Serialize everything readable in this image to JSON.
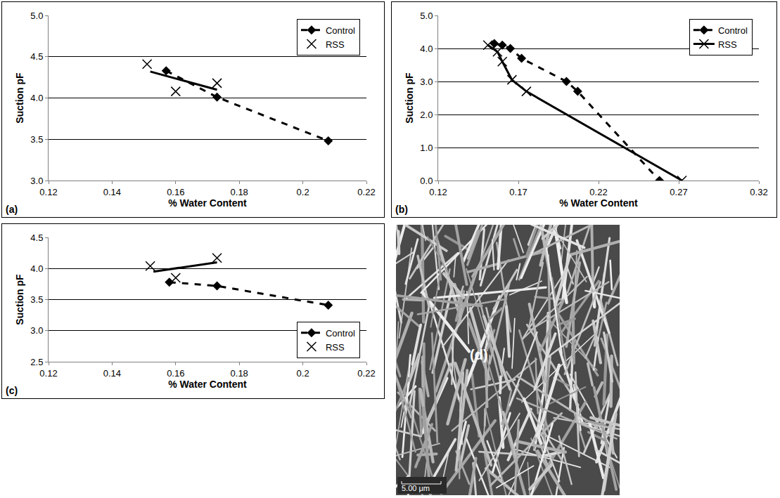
{
  "chart_data": [
    {
      "type": "scatter",
      "label": "(a)",
      "x_label": "% Water Content",
      "y_label": "Suction pF",
      "xlim": [
        0.12,
        0.22
      ],
      "xticks": [
        0.12,
        0.14,
        0.16,
        0.18,
        0.2,
        0.22
      ],
      "ylim": [
        3,
        5
      ],
      "yticks": [
        {
          "value": 3,
          "label": "3.0"
        },
        3.5,
        {
          "value": 4,
          "label": "4.0"
        },
        4.5,
        {
          "value": 5,
          "label": "5.0"
        }
      ],
      "grid": true,
      "legend": "upper right",
      "series": [
        {
          "name": "Control",
          "color": "#000000",
          "marker": "diamond",
          "line_style": "dashed",
          "x": [
            0.157,
            0.173,
            0.208
          ],
          "values": [
            4.33,
            4.01,
            3.48
          ]
        },
        {
          "name": "RSS",
          "color": "#000000",
          "marker": "x",
          "line_style": "none",
          "x": [
            0.151,
            0.16,
            0.173
          ],
          "values": [
            4.41,
            4.08,
            4.18
          ],
          "trend": {
            "x": [
              0.152,
              0.173
            ],
            "values": [
              4.32,
              4.1
            ],
            "line_style": "solid"
          }
        }
      ]
    },
    {
      "type": "scatter",
      "label": "(b)",
      "x_label": "% Water Content",
      "y_label": "Suction pF",
      "xlim": [
        0.12,
        0.32
      ],
      "xticks": [
        0.12,
        0.17,
        0.22,
        0.27,
        0.32
      ],
      "ylim": [
        0,
        5
      ],
      "yticks": [
        {
          "value": 0,
          "label": "0.0"
        },
        {
          "value": 1,
          "label": "1.0"
        },
        {
          "value": 2,
          "label": "2.0"
        },
        {
          "value": 3,
          "label": "3.0"
        },
        {
          "value": 4,
          "label": "4.0"
        },
        {
          "value": 5,
          "label": "5.0"
        }
      ],
      "grid": true,
      "legend": "upper right",
      "series": [
        {
          "name": "Control",
          "color": "#000000",
          "marker": "diamond",
          "line_style": "dashed",
          "x": [
            0.155,
            0.16,
            0.165,
            0.172,
            0.2,
            0.207,
            0.258
          ],
          "values": [
            4.15,
            4.1,
            4.0,
            3.7,
            3.0,
            2.7,
            0.0
          ]
        },
        {
          "name": "RSS",
          "color": "#000000",
          "marker": "x",
          "line_style": "solid",
          "x": [
            0.151,
            0.157,
            0.16,
            0.166,
            0.175,
            0.272
          ],
          "values": [
            4.1,
            3.9,
            3.6,
            3.05,
            2.7,
            0.0
          ]
        }
      ]
    },
    {
      "type": "scatter",
      "label": "(c)",
      "x_label": "% Water Content",
      "y_label": "Suction pF",
      "xlim": [
        0.12,
        0.22
      ],
      "xticks": [
        0.12,
        0.14,
        0.16,
        0.18,
        0.2,
        0.22
      ],
      "ylim": [
        2.5,
        4.5
      ],
      "yticks": [
        2.5,
        {
          "value": 3,
          "label": "3.0"
        },
        3.5,
        {
          "value": 4,
          "label": "4.0"
        },
        4.5
      ],
      "grid": true,
      "legend": "lower right",
      "series": [
        {
          "name": "Control",
          "color": "#000000",
          "marker": "diamond",
          "line_style": "dashed",
          "x": [
            0.158,
            0.173,
            0.208
          ],
          "values": [
            3.78,
            3.72,
            3.41
          ]
        },
        {
          "name": "RSS",
          "color": "#000000",
          "marker": "x",
          "line_style": "none",
          "x": [
            0.152,
            0.16,
            0.173
          ],
          "values": [
            4.04,
            3.85,
            4.17
          ],
          "trend": {
            "x": [
              0.153,
              0.173
            ],
            "values": [
              3.95,
              4.1
            ],
            "line_style": "solid"
          }
        }
      ]
    }
  ],
  "image": {
    "label": "(d)",
    "scale_bar": "5.00 μm"
  }
}
